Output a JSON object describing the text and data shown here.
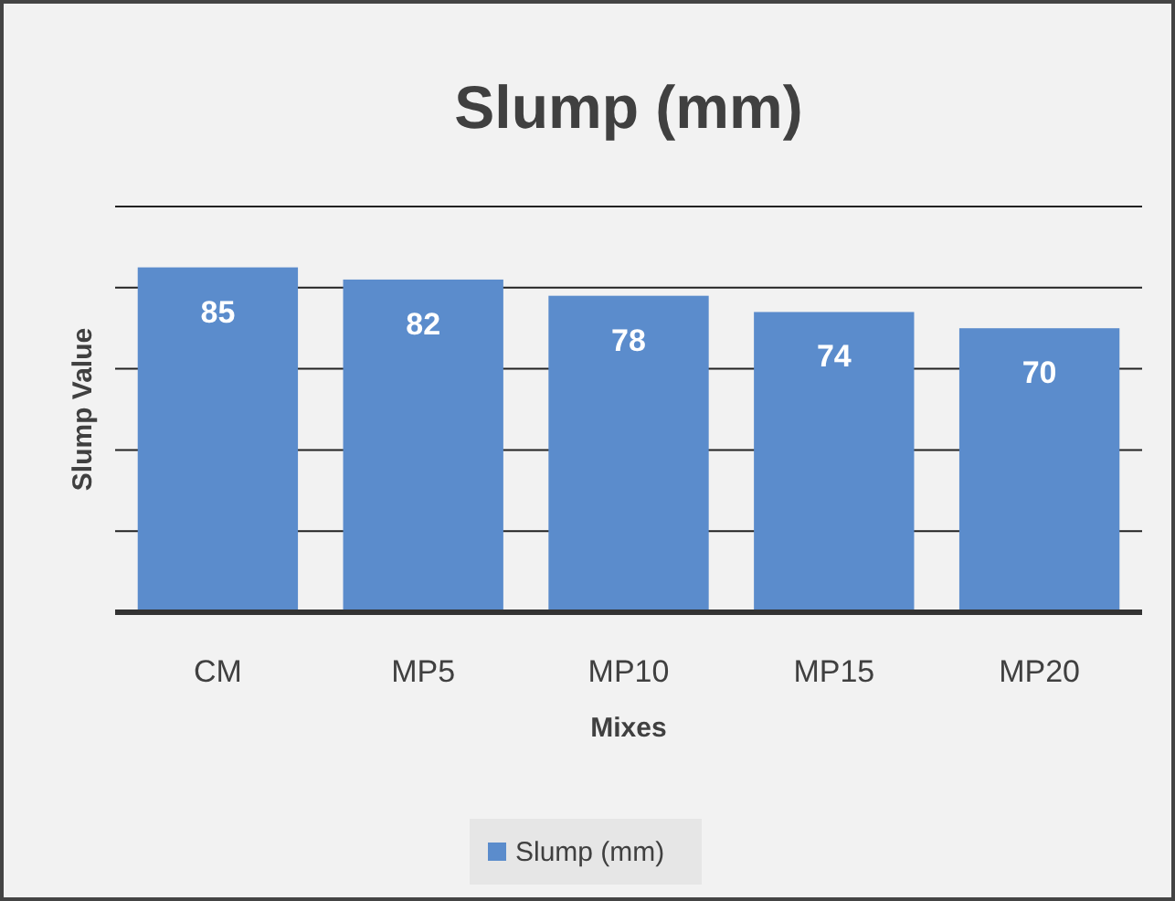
{
  "chart_data": {
    "type": "bar",
    "title": "Slump (mm)",
    "xlabel": "Mixes",
    "ylabel": "Slump Value",
    "categories": [
      "CM",
      "MP5",
      "MP10",
      "MP15",
      "MP20"
    ],
    "series": [
      {
        "name": "Slump (mm)",
        "color": "#5b8ccc",
        "values": [
          85,
          82,
          78,
          74,
          70
        ]
      }
    ],
    "ylim": [
      0,
      100
    ],
    "yticks": [
      {
        "value": 0,
        "label": null
      },
      {
        "value": 20,
        "label": null
      },
      {
        "value": 40,
        "label": null
      },
      {
        "value": 60,
        "label": null
      },
      {
        "value": 80,
        "label": null
      },
      {
        "value": 100,
        "label": null
      }
    ],
    "grid": "y",
    "tick_labels": "x",
    "data_labels": true,
    "legend": "bottom"
  }
}
